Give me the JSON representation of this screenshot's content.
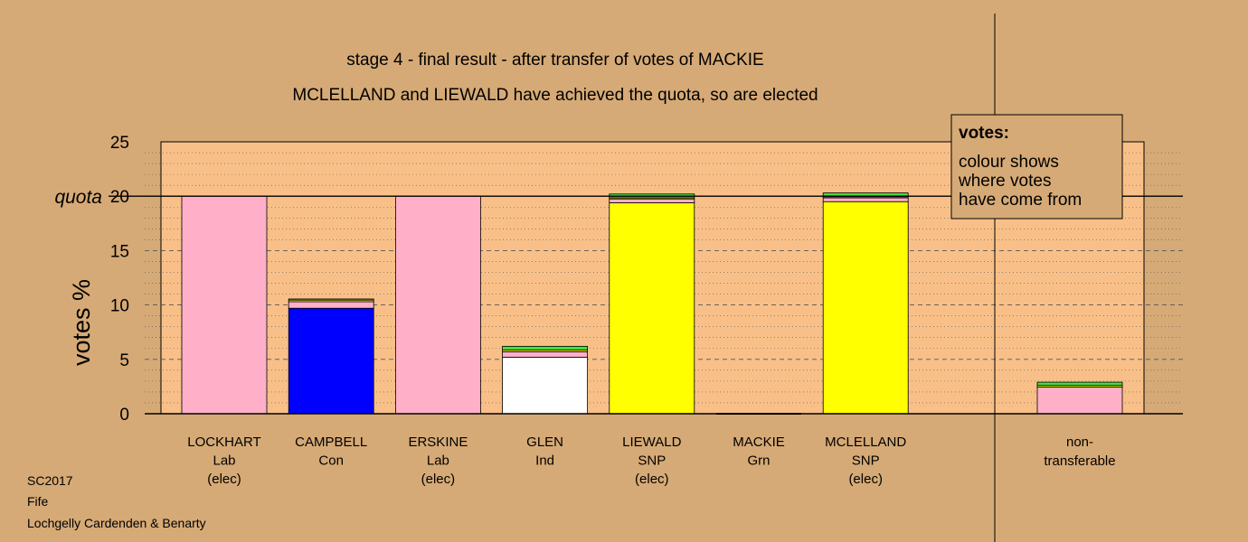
{
  "chart_data": {
    "type": "bar",
    "title": "stage 4 - final result - after transfer of votes of MACKIE",
    "subtitle": "MCLELLAND and LIEWALD have achieved the quota, so are elected",
    "ylabel": "votes %",
    "ylim": [
      0,
      25
    ],
    "yticks": [
      0,
      5,
      10,
      15,
      20,
      25
    ],
    "quota": {
      "value": 20,
      "label": "quota"
    },
    "grid": true,
    "legend": {
      "placement": "top-right",
      "title": "votes:",
      "lines": [
        "colour shows",
        "where votes",
        "have come from"
      ]
    },
    "categories": [
      {
        "name": "LOCKHART",
        "party": "Lab",
        "status": "(elec)",
        "segments": [
          {
            "value": 20.0,
            "color": "#ffb0c8"
          }
        ]
      },
      {
        "name": "CAMPBELL",
        "party": "Con",
        "status": "",
        "segments": [
          {
            "value": 9.7,
            "color": "#0000ff"
          },
          {
            "value": 0.6,
            "color": "#ffb0c8"
          },
          {
            "value": 0.15,
            "color": "#ffff00"
          },
          {
            "value": 0.1,
            "color": "#44dd44"
          }
        ]
      },
      {
        "name": "ERSKINE",
        "party": "Lab",
        "status": "(elec)",
        "segments": [
          {
            "value": 20.0,
            "color": "#ffb0c8"
          }
        ]
      },
      {
        "name": "GLEN",
        "party": "Ind",
        "status": "",
        "segments": [
          {
            "value": 5.2,
            "color": "#ffffff"
          },
          {
            "value": 0.5,
            "color": "#ffb0c8"
          },
          {
            "value": 0.15,
            "color": "#ffff00"
          },
          {
            "value": 0.35,
            "color": "#44dd44"
          }
        ]
      },
      {
        "name": "LIEWALD",
        "party": "SNP",
        "status": "(elec)",
        "segments": [
          {
            "value": 19.4,
            "color": "#ffff00"
          },
          {
            "value": 0.35,
            "color": "#ffb0c8"
          },
          {
            "value": 0.1,
            "color": "#ffff00"
          },
          {
            "value": 0.35,
            "color": "#44dd44"
          }
        ]
      },
      {
        "name": "MACKIE",
        "party": "Grn",
        "status": "",
        "segments": [
          {
            "value": 0.0,
            "color": "#44dd44"
          }
        ]
      },
      {
        "name": "MCLELLAND",
        "party": "SNP",
        "status": "(elec)",
        "segments": [
          {
            "value": 19.5,
            "color": "#ffff00"
          },
          {
            "value": 0.35,
            "color": "#ffb0c8"
          },
          {
            "value": 0.1,
            "color": "#ffff00"
          },
          {
            "value": 0.35,
            "color": "#44dd44"
          }
        ]
      }
    ],
    "non_transferable": {
      "label_lines": [
        "non-",
        "transferable"
      ],
      "segments": [
        {
          "value": 2.45,
          "color": "#ffb0c8"
        },
        {
          "value": 0.15,
          "color": "#ffff00"
        },
        {
          "value": 0.3,
          "color": "#44dd44"
        }
      ]
    }
  },
  "footer": [
    "SC2017",
    "Fife",
    "Lochgelly Cardenden & Benarty"
  ],
  "colors": {
    "background": "#d6aa76",
    "plot_background": "#f8c088",
    "legend_background": "#d6aa76"
  }
}
